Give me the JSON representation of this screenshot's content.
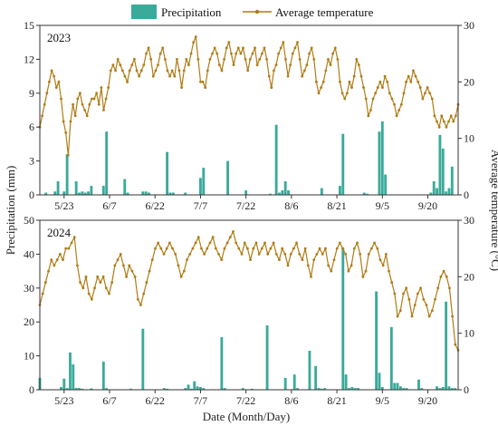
{
  "legend": {
    "precip_label": "Precipitation",
    "temp_label": "Average temperature"
  },
  "axes": {
    "x_title": "Date (Month/Day)",
    "y_left_title": "Precipitation (mm)",
    "y_right_title": "Average temperature (°C)"
  },
  "colors": {
    "bar": "#3aaa9a",
    "line": "#b07c16",
    "axis": "#333333"
  },
  "chart_data": [
    {
      "type": "bar+line",
      "panel_label": "2023",
      "x_tick_labels": [
        "5/23",
        "6/7",
        "6/22",
        "7/7",
        "7/22",
        "8/6",
        "8/21",
        "9/5",
        "9/20"
      ],
      "x_tick_days": [
        8,
        23,
        38,
        53,
        68,
        83,
        98,
        113,
        128
      ],
      "x_range_days": [
        0,
        138
      ],
      "y_left_range": [
        0,
        15
      ],
      "y_left_ticks": [
        0,
        3,
        6,
        9,
        12,
        15
      ],
      "y_right_range": [
        0,
        30
      ],
      "y_right_ticks": [
        0,
        10,
        20,
        30
      ],
      "precip_series": {
        "name": "Precipitation",
        "days": [
          2,
          5,
          6,
          8,
          9,
          12,
          13,
          14,
          15,
          16,
          17,
          21,
          22,
          28,
          29,
          34,
          35,
          36,
          42,
          43,
          44,
          48,
          53,
          54,
          62,
          68,
          76,
          78,
          79,
          80,
          81,
          82,
          93,
          99,
          100,
          107,
          108,
          112,
          113,
          114,
          129,
          130,
          131,
          132,
          133,
          134,
          135,
          136
        ],
        "values": [
          0.2,
          0.3,
          1.2,
          0.3,
          3.6,
          1.2,
          0.2,
          0.3,
          0.2,
          0.3,
          0.8,
          0.8,
          5.6,
          1.4,
          0.2,
          0.3,
          0.3,
          0.2,
          3.8,
          0.2,
          0.2,
          0.2,
          1.5,
          2.4,
          3.0,
          0.4,
          0.1,
          6.2,
          0.2,
          0.4,
          1.2,
          0.4,
          0.6,
          0.8,
          5.4,
          0.2,
          0.1,
          5.6,
          6.5,
          1.8,
          0.2,
          1.2,
          0.6,
          5.3,
          4.1,
          0.3,
          0.6,
          2.5
        ]
      },
      "temp_series": {
        "name": "Average temperature",
        "values": [
          12,
          14,
          16,
          18,
          20,
          22,
          21,
          19,
          20,
          17,
          13,
          11,
          7,
          13,
          16,
          14,
          17,
          18,
          16,
          15,
          14,
          16,
          17,
          17,
          18,
          16,
          19,
          15,
          17,
          19,
          22,
          23,
          22,
          24,
          23,
          22,
          21,
          20,
          22,
          23,
          24,
          22,
          21,
          22,
          23,
          25,
          26,
          24,
          21,
          22,
          23,
          25,
          26,
          24,
          22,
          21,
          22,
          21,
          24,
          22,
          19,
          22,
          24,
          23,
          25,
          27,
          28,
          24,
          20,
          20,
          19,
          22,
          24,
          25,
          26,
          25,
          23,
          22,
          24,
          26,
          27,
          25,
          23,
          25,
          26,
          25,
          26,
          24,
          22,
          24,
          25,
          26,
          23,
          24,
          25,
          26,
          24,
          21,
          19,
          22,
          23,
          25,
          26,
          27,
          24,
          21,
          23,
          25,
          26,
          27,
          24,
          21,
          22,
          23,
          25,
          26,
          24,
          20,
          18,
          19,
          20,
          22,
          24,
          23,
          25,
          26,
          24,
          20,
          18,
          17,
          18,
          20,
          19,
          21,
          24,
          23,
          21,
          19,
          17,
          14,
          15,
          17,
          18,
          19,
          20,
          19,
          21,
          20,
          18,
          17,
          16,
          14,
          15,
          16,
          18,
          20,
          21,
          20,
          22,
          21,
          20,
          19,
          17,
          18,
          19,
          18,
          17,
          14,
          13,
          12,
          14,
          13,
          12,
          13,
          14,
          13,
          14,
          16
        ]
      }
    },
    {
      "type": "bar+line",
      "panel_label": "2024",
      "x_tick_labels": [
        "5/23",
        "6/7",
        "6/22",
        "7/7",
        "7/22",
        "8/6",
        "8/21",
        "9/5",
        "9/20"
      ],
      "x_tick_days": [
        8,
        23,
        38,
        53,
        68,
        83,
        98,
        113,
        128
      ],
      "x_range_days": [
        0,
        138
      ],
      "y_left_range": [
        0,
        50
      ],
      "y_left_ticks": [
        0,
        10,
        20,
        30,
        40,
        50
      ],
      "y_right_range": [
        0,
        30
      ],
      "y_right_ticks": [
        0,
        10,
        20,
        30
      ],
      "precip_series": {
        "name": "Precipitation",
        "days": [
          0,
          7,
          8,
          9,
          10,
          11,
          12,
          13,
          14,
          17,
          21,
          22,
          30,
          34,
          41,
          42,
          48,
          49,
          50,
          51,
          52,
          53,
          54,
          60,
          61,
          67,
          70,
          75,
          81,
          84,
          85,
          89,
          91,
          92,
          93,
          94,
          100,
          101,
          102,
          103,
          104,
          105,
          111,
          112,
          113,
          116,
          117,
          118,
          119,
          120,
          121,
          125,
          126,
          131,
          132,
          133,
          134,
          135,
          136,
          137
        ],
        "values": [
          3.5,
          0.8,
          3.3,
          0.5,
          11.0,
          7.5,
          0.5,
          0.5,
          0.3,
          0.4,
          8.3,
          0.5,
          0.3,
          18.0,
          0.5,
          0.3,
          0.5,
          1.5,
          0.3,
          2.5,
          1.0,
          0.8,
          0.5,
          15.5,
          0.5,
          0.5,
          0.3,
          19.0,
          3.5,
          4.5,
          0.5,
          11.5,
          7.0,
          0.5,
          0.3,
          0.5,
          42.0,
          4.5,
          0.5,
          0.8,
          0.5,
          0.5,
          29.0,
          5.0,
          0.8,
          18.5,
          2.0,
          2.0,
          1.0,
          0.5,
          0.5,
          3.0,
          0.5,
          1.0,
          0.5,
          0.8,
          26.0,
          1.0,
          0.5,
          0.5
        ]
      },
      "temp_series": {
        "name": "Average temperature",
        "values": [
          15,
          17,
          19,
          21,
          23,
          22,
          23,
          24,
          23,
          25,
          25,
          26,
          27,
          22,
          19,
          18,
          20,
          17,
          16,
          18,
          20,
          19,
          20,
          18,
          17,
          19,
          22,
          23,
          24,
          22,
          20,
          22,
          21,
          20,
          16,
          15,
          17,
          19,
          21,
          23,
          25,
          26,
          25,
          24,
          25,
          26,
          25,
          24,
          22,
          20,
          21,
          23,
          24,
          25,
          26,
          27,
          25,
          24,
          25,
          26,
          27,
          25,
          24,
          23,
          25,
          26,
          27,
          28,
          26,
          25,
          24,
          26,
          25,
          23,
          25,
          26,
          24,
          25,
          26,
          24,
          25,
          26,
          24,
          23,
          25,
          24,
          22,
          24,
          25,
          26,
          24,
          23,
          25,
          22,
          20,
          23,
          24,
          25,
          24,
          25,
          22,
          21,
          23,
          25,
          26,
          25,
          24,
          21,
          22,
          25,
          26,
          24,
          20,
          21,
          24,
          25,
          26,
          25,
          23,
          22,
          24,
          21,
          19,
          17,
          13,
          14,
          17,
          18,
          16,
          13,
          15,
          17,
          18,
          16,
          15,
          13,
          14,
          16,
          18,
          20,
          21,
          20,
          18,
          13,
          8,
          7
        ]
      }
    }
  ]
}
